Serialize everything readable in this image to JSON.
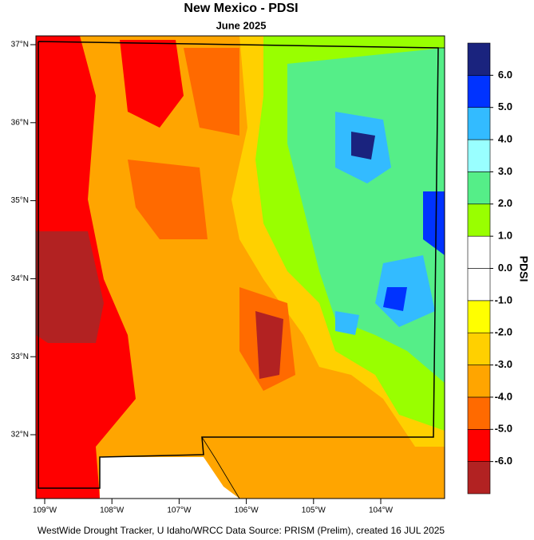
{
  "title": "New Mexico - PDSI",
  "subtitle": "June 2025",
  "map": {
    "lat_ticks": [
      {
        "value": 37,
        "label": "37°N"
      },
      {
        "value": 36,
        "label": "36°N"
      },
      {
        "value": 35,
        "label": "35°N"
      },
      {
        "value": 34,
        "label": "34°N"
      },
      {
        "value": 33,
        "label": "33°N"
      },
      {
        "value": 32,
        "label": "32°N"
      }
    ],
    "lon_ticks": [
      {
        "value": -109,
        "label": "109°W"
      },
      {
        "value": -108,
        "label": "108°W"
      },
      {
        "value": -107,
        "label": "107°W"
      },
      {
        "value": -106,
        "label": "106°W"
      },
      {
        "value": -105,
        "label": "105°W"
      },
      {
        "value": -104,
        "label": "104°W"
      }
    ]
  },
  "colorbar": {
    "title": "PDSI",
    "colors": [
      "#b22222",
      "#ff0000",
      "#ff6a00",
      "#ffa500",
      "#ffd000",
      "#ffff00",
      "#ffffff",
      "#ffffff",
      "#99ff00",
      "#55ee88",
      "#99ffff",
      "#33bbff",
      "#0033ff",
      "#1a237e"
    ],
    "ticks": [
      {
        "value": -6,
        "label": "-6.0"
      },
      {
        "value": -5,
        "label": "-5.0"
      },
      {
        "value": -4,
        "label": "-4.0"
      },
      {
        "value": -3,
        "label": "-3.0"
      },
      {
        "value": -2,
        "label": "-2.0"
      },
      {
        "value": -1,
        "label": "-1.0"
      },
      {
        "value": 0,
        "label": "0.0"
      },
      {
        "value": 1,
        "label": "1.0"
      },
      {
        "value": 2,
        "label": "2.0"
      },
      {
        "value": 3,
        "label": "3.0"
      },
      {
        "value": 4,
        "label": "4.0"
      },
      {
        "value": 5,
        "label": "5.0"
      },
      {
        "value": 6,
        "label": "6.0"
      }
    ]
  },
  "footer": "WestWide Drought Tracker, U Idaho/WRCC Data Source: PRISM (Prelim), created 16 JUL 2025"
}
